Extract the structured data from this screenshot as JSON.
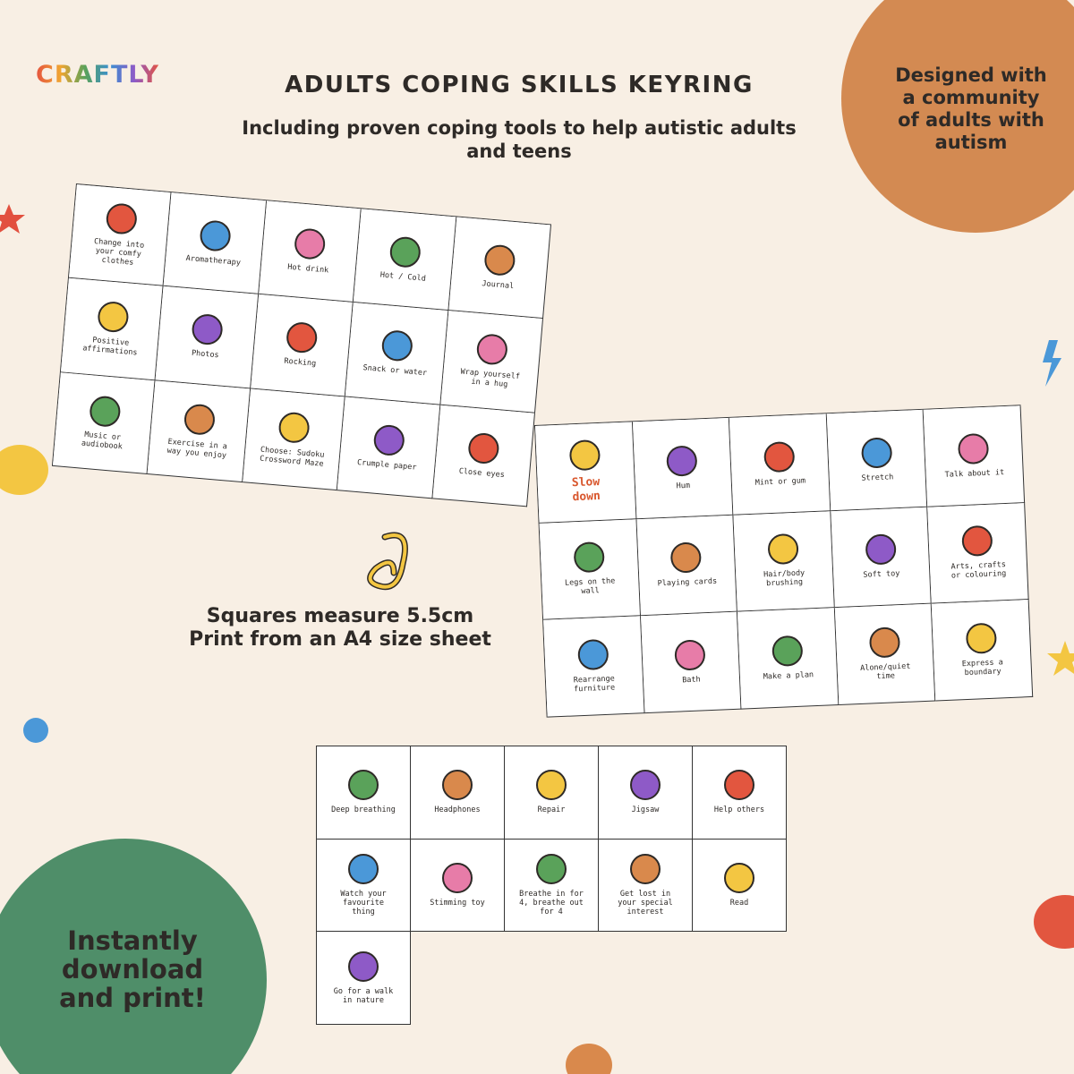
{
  "logo": "CRAFTLY",
  "header": {
    "title": "ADULTS COPING SKILLS KEYRING",
    "subtitle": "Including proven coping tools to help autistic adults and teens"
  },
  "badges": {
    "community": "Designed with a community of adults with autism",
    "download": "Instantly download and print!"
  },
  "notes": [
    "Squares measure 5.5cm",
    "Print from an A4 size sheet"
  ],
  "sheets": [
    {
      "cards": [
        "Change into your comfy clothes",
        "Aromatherapy",
        "Hot drink",
        "Hot / Cold",
        "Journal",
        "Positive affirmations",
        "Photos",
        "Rocking",
        "Snack or water",
        "Wrap yourself in a hug",
        "Music or audiobook",
        "Exercise in a way you enjoy",
        "Choose: Sudoku Crossword Maze",
        "Crumple paper",
        "Close eyes"
      ]
    },
    {
      "cards": [
        "Slow down",
        "Hum",
        "Mint or gum",
        "Stretch",
        "Talk about it",
        "Legs on the wall",
        "Playing cards",
        "Hair/body brushing",
        "Soft toy",
        "Arts, crafts or colouring",
        "Rearrange furniture",
        "Bath",
        "Make a plan",
        "Alone/quiet time",
        "Express a boundary"
      ]
    },
    {
      "cards": [
        "Deep breathing",
        "Headphones",
        "Repair",
        "Jigsaw",
        "Help others",
        "Watch your favourite thing",
        "Stimming toy",
        "Breathe in for 4, breathe out for 4",
        "Get lost in your special interest",
        "Read",
        "Go for a walk in nature"
      ]
    }
  ]
}
